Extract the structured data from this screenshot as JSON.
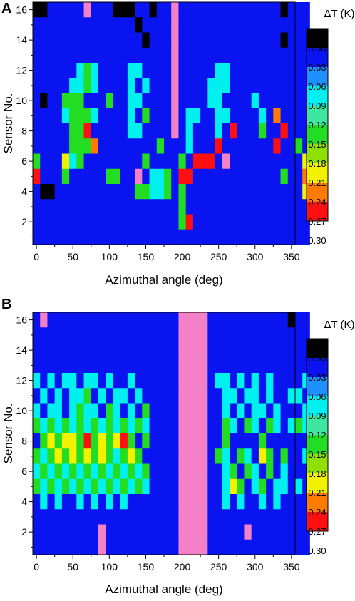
{
  "chart_data": [
    {
      "type": "heatmap",
      "panel_label": "A",
      "xlabel": "Azimuthal angle (deg)",
      "ylabel": "Sensor No.",
      "x_ticks": [
        "0",
        "50",
        "100",
        "150",
        "200",
        "250",
        "300",
        "350"
      ],
      "y_ticks": [
        "2",
        "4",
        "6",
        "8",
        "10",
        "12",
        "14",
        "16"
      ],
      "xlim": [
        -5,
        355
      ],
      "ylim": [
        0.5,
        16.5
      ],
      "x_step_deg": 10,
      "colorbar": {
        "title": "ΔT (K)",
        "labels": [
          "0.00",
          "0.03",
          "0.06",
          "0.09",
          "0.12",
          "0.15",
          "0.18",
          "0.21",
          "0.24",
          "0.27",
          "0.30"
        ]
      },
      "colors": {
        "missing": "#f281c7"
      },
      "grid_rows": [
        "KKBBBBBPBBBKKKBBKBBPBBBBBBBBBBBBBBKBBB",
        "BBBBBBBBBBBBBBKBBBBPBBBBBBBBBBBBBBBBBB",
        "BBBBBBBBBBBBBBBKBBBPBBBBBBBBBBBBBBKBBB",
        "BBBBBBBBBBBBBBBBBBBPBBBBBBBBBBBBBBBBBB",
        "BBBBBBCgCBBBBCCBBBBPBBBBBCCBBBBBBBBBBB",
        "BBBBBCCgCBBBBCBCBBBPBBBBCCCBBBBBBBBBBB",
        "BKBBgggBBBgBBCCBBBBPBBBBCCBBBBCBBBBBBB",
        "BBBBCgggCBBBBCBgBBBPBCCBBCCBBBBCBOBBBB",
        "BBBBBggRBBBBBCCBBBBPBCBBBCBRBBBgBBRBBB",
        "BBBBBgggOBBBBBBBBgBBBCBBBRBBBBBBBRBBgB",
        "gBBBYCgBBBBBBBBgBBBBgBRRRBPBBBBBBBBBBY",
        "RBBBgBBBBBggBBPBCCgBRRBBBBBBBBBBBBgBBO",
        "BKKBBBBBBBBBBBggCCgBgBBBBBBBBBBBBBBBBY",
        "BBBBBBBBBBBBBBBBBBBBgBBBBBBBBBBBBBBBBB",
        "BBBBBBBBBBBBBBBBBBBBgRBBBBBBBBBBBBBBBB",
        "BBBBBBBBBBBBBBBBBBBBBBBBBBBBBBBBBBBBBB"
      ]
    },
    {
      "type": "heatmap",
      "panel_label": "B",
      "xlabel": "Azimuthal angle (deg)",
      "ylabel": "Sensor No.",
      "x_ticks": [
        "0",
        "50",
        "100",
        "150",
        "200",
        "250",
        "300",
        "350"
      ],
      "y_ticks": [
        "2",
        "4",
        "6",
        "8",
        "10",
        "12",
        "14",
        "16"
      ],
      "xlim": [
        -5,
        355
      ],
      "ylim": [
        0.5,
        16.5
      ],
      "x_step_deg": 10,
      "colorbar": {
        "title": "ΔT (K)",
        "labels": [
          "0.00",
          "0.03",
          "0.06",
          "0.09",
          "0.12",
          "0.15",
          "0.18",
          "0.21",
          "0.24",
          "0.27",
          "0.30"
        ]
      },
      "colors": {
        "missing": "#f281c7"
      },
      "grid_rows": [
        "BPBBBBBBBBBBBBBBBBBBPPPPBBBBBBBBBBBKBB",
        "BBBBBBBBBBBBBBBBBBBBPPPPBBBBBBBBBBBBBB",
        "BBBBBBBBBBBBBBBBBBBBPPPPBBBBBBBBBBBBBB",
        "BBBBBBBBBBBBBBBBBBBBPPPPBBBBBBBBBBBBBB",
        "CBCBCCBCCBCBBCBBBBBBPPPPBCCBCBCBCBBBBC",
        "BCBCBCCgBCBCCBCBBBBBPPPPBBCCBCCBCBBCCB",
        "CBCCBCgCCBgCBCBgBBBBPPPPBBCBCBCCBCBBBC",
        "gCgCgCgCgCgCgCgCBBBBPPPPBBgCBgCBgCBCgC",
        "BgYgYYgRgYgYRgBgBBBBPPPPBBgBBBBgBBBBBB",
        "gCgYgYgYgYgCgYgBBBBBPPPPBgCBgCBYgBgBBC",
        "CgCgCgCgCgCgCgCgBBBBPPPPBBCgBgCBgBCBBB",
        "gCgCgCgCgCgCgCgCBBBBPPPPBBCYgBCgBCCBCB",
        "BCBCBBCBCBCBCBBBBBBBPPPPBBCBCBBCBCBBBB",
        "BBBBBBBBBBBBBBBBBBBBPPPPBBBBBBBBBBBBBB",
        "BBBBBBBBBPBBBBBBBBBBPPPPBBBBBPBBBBBBBB",
        "BBBBBBBBBPBBBBBBBBBBPPPPBBBBBBBBBBBBBB"
      ]
    }
  ]
}
